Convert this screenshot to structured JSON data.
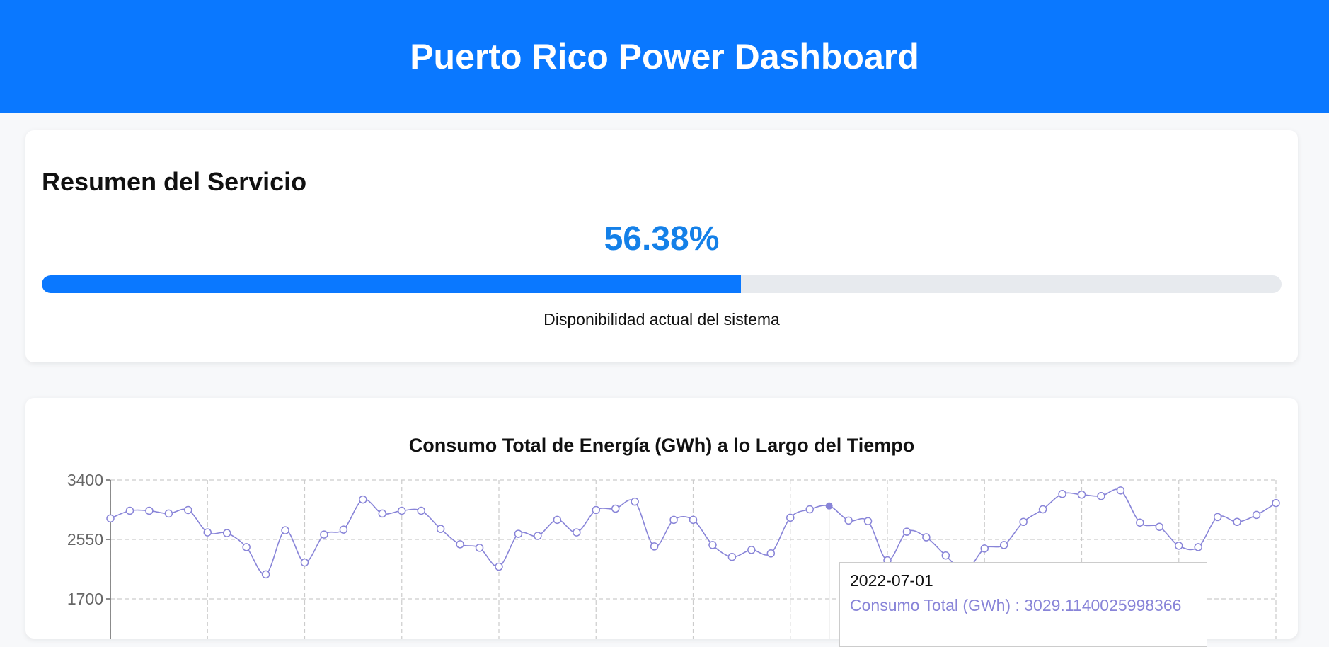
{
  "header": {
    "title": "Puerto Rico Power Dashboard"
  },
  "summary": {
    "title": "Resumen del Servicio",
    "availability_text": "56.38%",
    "availability_fraction": 0.5638,
    "caption": "Disponibilidad actual del sistema"
  },
  "colors": {
    "header_bg": "#0a78ff",
    "accent": "#0a78ff",
    "percent_text": "#1480e8",
    "series": "#8884d8",
    "grid": "#cccccc"
  },
  "chart_data": {
    "type": "line",
    "title": "Consumo Total de Energía (GWh) a lo Largo del Tiempo",
    "ylim": [
      1700,
      3400
    ],
    "yticks": [
      "3400",
      "2550",
      "1700"
    ],
    "grid": true,
    "series": [
      {
        "name": "Consumo Total (GWh)",
        "values": [
          2850,
          2960,
          2960,
          2920,
          2970,
          2650,
          2640,
          2440,
          2050,
          2680,
          2220,
          2620,
          2690,
          3120,
          2920,
          2960,
          2960,
          2700,
          2480,
          2430,
          2160,
          2630,
          2600,
          2830,
          2650,
          2970,
          2990,
          3090,
          2450,
          2830,
          2830,
          2470,
          2300,
          2400,
          2350,
          2860,
          2980,
          3029,
          2820,
          2810,
          2250,
          2660,
          2580,
          2320,
          2100,
          2420,
          2470,
          2800,
          2980,
          3200,
          3190,
          3170,
          3250,
          2790,
          2730,
          2460,
          2440,
          2870,
          2800,
          2900,
          3070
        ]
      }
    ],
    "tooltip": {
      "date": "2022-07-01",
      "text": "Consumo Total (GWh) : 3029.1140025998366"
    },
    "active_index": 37
  }
}
